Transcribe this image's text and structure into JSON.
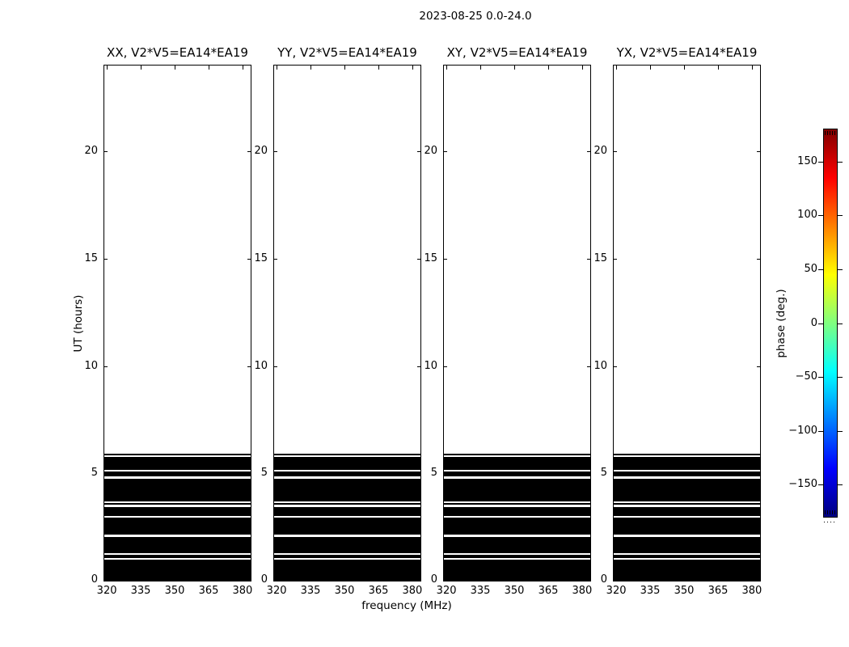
{
  "chart_data": {
    "type": "heatmap",
    "title": "2023-08-25 0.0-24.0",
    "panels": [
      {
        "title": "XX, V2*V5=EA14*EA19"
      },
      {
        "title": "YY, V2*V5=EA14*EA19"
      },
      {
        "title": "XY, V2*V5=EA14*EA19"
      },
      {
        "title": "YX, V2*V5=EA14*EA19"
      }
    ],
    "xlabel": "frequency (MHz)",
    "ylabel": "UT (hours)",
    "x_ticks": [
      320,
      335,
      350,
      365,
      380
    ],
    "x_range_mhz": [
      318.9,
      383.6
    ],
    "y_ticks": [
      0,
      5,
      10,
      15,
      20
    ],
    "y_range_hours": [
      0,
      24
    ],
    "grid": false,
    "legend": false,
    "data_time_blocks_hours": [
      [
        0.0,
        0.99
      ],
      [
        1.06,
        1.19
      ],
      [
        1.27,
        2.05
      ],
      [
        2.14,
        2.94
      ],
      [
        3.02,
        3.44
      ],
      [
        3.54,
        3.62
      ],
      [
        3.69,
        4.74
      ],
      [
        4.85,
        5.1
      ],
      [
        5.17,
        5.77
      ],
      [
        5.83,
        5.92
      ]
    ],
    "block_fill_color": "#000000",
    "background_color": "#ffffff",
    "colorbar": {
      "label": "phase (deg.)",
      "tick_labels": [
        "150",
        "100",
        "50",
        "0",
        "−50",
        "−100",
        "−150"
      ],
      "tick_values": [
        150,
        100,
        50,
        0,
        -50,
        -100,
        -150
      ],
      "range_deg": [
        -180,
        180
      ],
      "colormap": "jet",
      "stops_top_to_bottom": [
        "#800000",
        "#ff0000",
        "#ffff00",
        "#80ff80",
        "#00ffff",
        "#0000ff",
        "#000080"
      ],
      "stop_positions_pct": [
        0,
        12.5,
        37.5,
        50,
        62.5,
        87.5,
        100
      ]
    }
  }
}
